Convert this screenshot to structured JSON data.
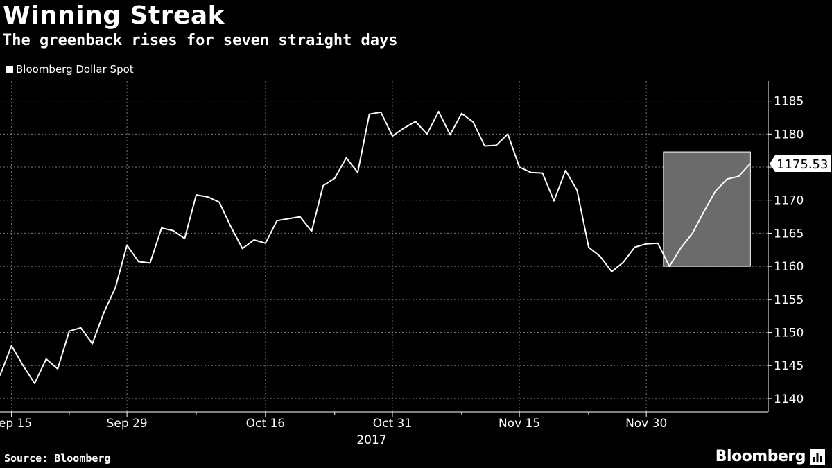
{
  "title": "Winning Streak",
  "subtitle": "The greenback rises for seven straight days",
  "legend": {
    "label": "Bloomberg Dollar Spot",
    "color": "#ffffff"
  },
  "source": {
    "label": "Source:",
    "value": "Bloomberg"
  },
  "brand": {
    "name": "Bloomberg",
    "icon": "bloomberg-chart-icon"
  },
  "colors": {
    "background": "#000000",
    "line": "#ffffff",
    "grid": "#777777",
    "highlight": "#6b6b6b"
  },
  "chart_data": {
    "type": "line",
    "title": "Winning Streak",
    "subtitle": "The greenback rises for seven straight days",
    "xlabel": "",
    "ylabel": "",
    "year_label": "2017",
    "x_tick_labels": [
      "Sep 15",
      "Sep 29",
      "Oct 16",
      "Oct 31",
      "Nov 15",
      "Nov 30"
    ],
    "x_tick_indices": [
      1,
      11,
      23,
      34,
      45,
      56
    ],
    "minor_tick_indices": [
      6,
      17,
      29,
      40,
      51
    ],
    "y_ticks": [
      1140,
      1145,
      1150,
      1155,
      1160,
      1165,
      1170,
      1175,
      1180,
      1185
    ],
    "ylim": [
      1138,
      1188
    ],
    "grid": true,
    "legend_position": "top-left",
    "last_value_label": "1175.53",
    "highlight_range": {
      "start_index": 57,
      "end_index": 64,
      "y_min": 1160,
      "y_max": 1177.3
    },
    "series": [
      {
        "name": "Bloomberg Dollar Spot",
        "values": [
          1143.5,
          1148.0,
          1145.0,
          1142.3,
          1146.0,
          1144.5,
          1150.2,
          1150.7,
          1148.3,
          1153.0,
          1156.8,
          1163.2,
          1160.7,
          1160.5,
          1165.8,
          1165.4,
          1164.2,
          1170.8,
          1170.5,
          1169.7,
          1166.0,
          1162.7,
          1164.0,
          1163.5,
          1166.9,
          1167.2,
          1167.5,
          1165.3,
          1172.2,
          1173.3,
          1176.4,
          1174.2,
          1183.0,
          1183.3,
          1179.7,
          1180.9,
          1181.9,
          1180.0,
          1183.4,
          1179.9,
          1183.1,
          1181.8,
          1178.2,
          1178.3,
          1180.0,
          1175.0,
          1174.2,
          1174.1,
          1169.9,
          1174.5,
          1171.5,
          1162.9,
          1161.5,
          1159.2,
          1160.6,
          1162.9,
          1163.4,
          1163.5,
          1160.0,
          1162.8,
          1165.0,
          1168.3,
          1171.4,
          1173.2,
          1173.6,
          1175.53
        ]
      }
    ]
  }
}
